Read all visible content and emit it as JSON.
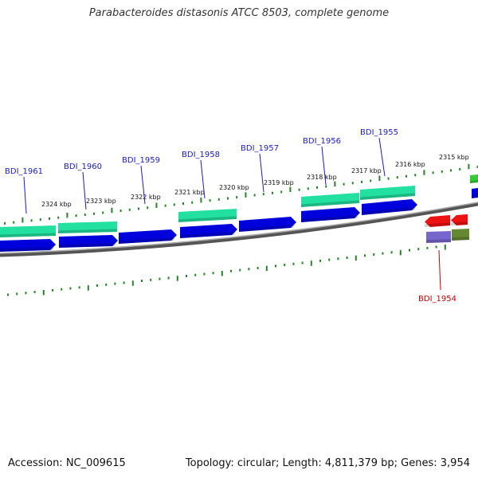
{
  "title": "Parabacteroides distasonis ATCC 8503, complete genome",
  "footer": {
    "accession": "Accession: NC_009615",
    "summary": "Topology: circular; Length: 4,811,379 bp; Genes: 3,954"
  },
  "ruler": [
    "2324 kbp",
    "2323 kbp",
    "2322 kbp",
    "2321 kbp",
    "2320 kbp",
    "2319 kbp",
    "2318 kbp",
    "2317 kbp",
    "2316 kbp",
    "2315 kbp"
  ],
  "genes": [
    {
      "name": "BDI_1961",
      "color": "#1a1acc"
    },
    {
      "name": "BDI_1960",
      "color": "#1a1acc"
    },
    {
      "name": "BDI_1959",
      "color": "#1a1acc"
    },
    {
      "name": "BDI_1958",
      "color": "#1a1acc"
    },
    {
      "name": "BDI_1957",
      "color": "#1a1acc"
    },
    {
      "name": "BDI_1956",
      "color": "#1a1acc"
    },
    {
      "name": "BDI_1955",
      "color": "#1a1acc"
    },
    {
      "name": "BDI_1954",
      "color": "#cc0000"
    }
  ],
  "colors": {
    "cds": "#0000dd",
    "cog_green": "#22e0a0",
    "rna_red": "#ee1111",
    "purple": "#7766cc",
    "olive": "#668833",
    "backbone": "#808080",
    "tick": "#228822"
  }
}
